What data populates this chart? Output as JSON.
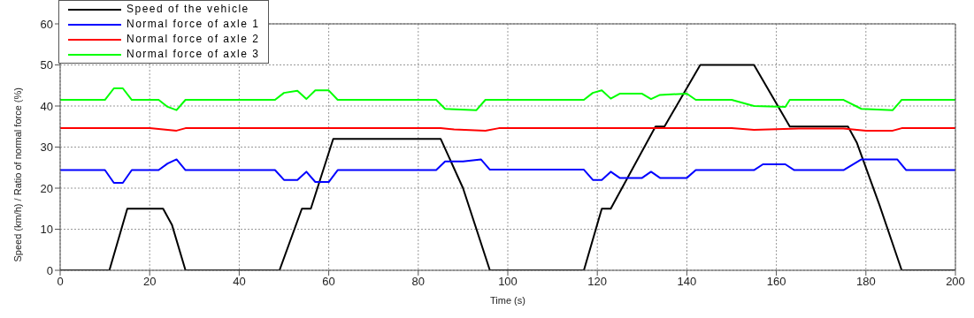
{
  "chart_data": {
    "type": "line",
    "xlabel": "Time (s)",
    "ylabel": "Speed (km/h) / Ratio of normal force (%)",
    "xlim": [
      0,
      200
    ],
    "xticks": [
      0,
      20,
      40,
      60,
      80,
      100,
      120,
      140,
      160,
      180,
      200
    ],
    "ylim": [
      0,
      60
    ],
    "yticks": [
      0,
      10,
      20,
      30,
      40,
      50,
      60
    ],
    "grid": true,
    "legend": "top left",
    "line_style": "solid",
    "marker": "none",
    "series": [
      {
        "name": "Speed of the vehicle",
        "color": "#000000",
        "x": [
          0,
          11,
          15,
          23,
          25,
          28,
          49,
          54,
          56,
          61,
          85,
          90,
          96,
          117,
          121,
          123,
          133,
          135,
          143,
          155,
          163,
          176,
          178,
          183,
          188,
          200
        ],
        "values": [
          0,
          0,
          15,
          15,
          11,
          0,
          0,
          15,
          15,
          32,
          32,
          20,
          0,
          0,
          15,
          15,
          35,
          35,
          50,
          50,
          35,
          35,
          31,
          16,
          0,
          0
        ]
      },
      {
        "name": "Normal force of axle 1",
        "color": "#0000ff",
        "x": [
          0,
          10,
          12,
          14,
          16,
          22,
          24,
          26,
          28,
          48,
          50,
          53,
          55,
          57,
          60,
          62,
          84,
          86,
          90,
          94,
          96,
          117,
          119,
          121,
          123,
          125,
          130,
          132,
          134,
          140,
          142,
          155,
          157,
          162,
          164,
          175,
          179,
          187,
          189,
          200
        ],
        "values": [
          24.4,
          24.4,
          21.3,
          21.3,
          24.4,
          24.4,
          26,
          27,
          24.4,
          24.4,
          22,
          22,
          24,
          21.5,
          21.5,
          24.4,
          24.4,
          26.5,
          26.5,
          27,
          24.5,
          24.5,
          22,
          22,
          24,
          22.5,
          22.5,
          24,
          22.5,
          22.5,
          24.4,
          24.4,
          25.8,
          25.8,
          24.4,
          24.4,
          27,
          27,
          24.4,
          24.4
        ]
      },
      {
        "name": "Normal force of axle 2",
        "color": "#ff0000",
        "x": [
          0,
          20,
          26,
          28,
          85,
          88,
          95,
          98,
          150,
          155,
          165,
          175,
          180,
          186,
          188,
          200
        ],
        "values": [
          34.6,
          34.6,
          34,
          34.6,
          34.6,
          34.3,
          34,
          34.6,
          34.6,
          34.2,
          34.5,
          34.5,
          34,
          34,
          34.6,
          34.6
        ]
      },
      {
        "name": "Normal force of axle 3",
        "color": "#00ff00",
        "x": [
          0,
          10,
          12,
          14,
          16,
          22,
          24,
          26,
          28,
          48,
          50,
          53,
          55,
          57,
          60,
          62,
          84,
          86,
          93,
          95,
          117,
          119,
          121,
          123,
          125,
          130,
          132,
          134,
          140,
          142,
          150,
          155,
          162,
          163,
          175,
          179,
          186,
          188,
          200
        ],
        "values": [
          41.5,
          41.5,
          44.3,
          44.3,
          41.5,
          41.5,
          39.8,
          39,
          41.5,
          41.5,
          43.2,
          43.7,
          41.7,
          43.8,
          43.8,
          41.5,
          41.5,
          39.3,
          39,
          41.5,
          41.5,
          43.2,
          43.8,
          41.8,
          43,
          43,
          41.7,
          42.7,
          43,
          41.5,
          41.5,
          40,
          39.8,
          41.5,
          41.5,
          39.3,
          39,
          41.5,
          41.5
        ]
      }
    ]
  }
}
